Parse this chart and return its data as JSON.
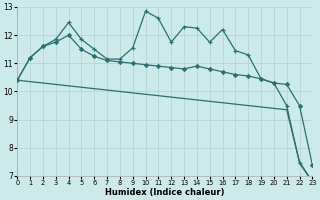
{
  "bg_color": "#cceaea",
  "grid_color": "#b8d8d8",
  "line_color": "#2a7070",
  "xlim": [
    0,
    23
  ],
  "ylim": [
    7,
    13
  ],
  "yticks": [
    7,
    8,
    9,
    10,
    11,
    12,
    13
  ],
  "xticks": [
    0,
    1,
    2,
    3,
    4,
    5,
    6,
    7,
    8,
    9,
    10,
    11,
    12,
    13,
    14,
    15,
    16,
    17,
    18,
    19,
    20,
    21,
    22,
    23
  ],
  "xlabel": "Humidex (Indice chaleur)",
  "line_diag_x": [
    0,
    1,
    2,
    3,
    4,
    5,
    6,
    7,
    8,
    9,
    10,
    11,
    12,
    13,
    14,
    15,
    16,
    17,
    18,
    19,
    20,
    21,
    22,
    23
  ],
  "line_diag_y": [
    10.4,
    10.35,
    10.3,
    10.25,
    10.2,
    10.15,
    10.1,
    10.05,
    10.0,
    9.95,
    9.9,
    9.85,
    9.8,
    9.75,
    9.7,
    9.65,
    9.6,
    9.55,
    9.5,
    9.45,
    9.4,
    9.35,
    7.5,
    6.8
  ],
  "line_mid_x": [
    0,
    1,
    2,
    3,
    4,
    5,
    6,
    7,
    8,
    9,
    10,
    11,
    12,
    13,
    14,
    15,
    16,
    17,
    18,
    19,
    20,
    21,
    22,
    23
  ],
  "line_mid_y": [
    10.4,
    11.2,
    11.6,
    11.75,
    12.0,
    11.5,
    11.25,
    11.1,
    11.05,
    11.0,
    10.95,
    10.9,
    10.85,
    10.8,
    10.9,
    10.8,
    10.7,
    10.6,
    10.55,
    10.45,
    10.3,
    10.25,
    9.5,
    7.4
  ],
  "line_top_x": [
    0,
    1,
    2,
    3,
    4,
    5,
    6,
    7,
    8,
    9,
    10,
    11,
    12,
    13,
    14,
    15,
    16,
    17,
    18,
    19,
    20,
    21,
    22,
    23
  ],
  "line_top_y": [
    10.4,
    11.2,
    11.6,
    11.85,
    12.45,
    11.85,
    11.5,
    11.15,
    11.15,
    11.55,
    12.85,
    12.6,
    11.75,
    12.3,
    12.25,
    11.75,
    12.2,
    11.45,
    11.3,
    10.45,
    10.3,
    9.5,
    7.45,
    6.8
  ]
}
